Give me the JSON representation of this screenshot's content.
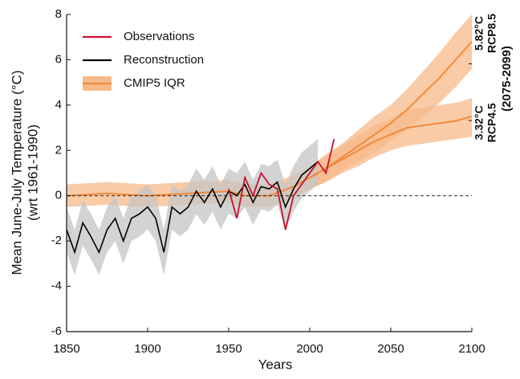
{
  "chart_data": {
    "type": "line",
    "xlabel": "Years",
    "ylabel": [
      "Mean June-July Temperature (°C)",
      "(wrt 1961-1990)"
    ],
    "xlim": [
      1850,
      2100
    ],
    "xticks": [
      1850,
      1900,
      1950,
      2000,
      2050,
      2100
    ],
    "ylim": [
      -6,
      8
    ],
    "yticks": [
      -6,
      -4,
      -2,
      0,
      2,
      4,
      6,
      8
    ],
    "hline": 0,
    "legend": "upper left",
    "series": [
      {
        "name": "Observations",
        "color": "#c8102e",
        "x": [
          1950,
          1955,
          1960,
          1965,
          1970,
          1975,
          1980,
          1985,
          1990,
          1995,
          2000,
          2005,
          2010,
          2015
        ],
        "values": [
          0.3,
          -1.0,
          0.8,
          0.0,
          1.0,
          0.5,
          0.3,
          -1.5,
          0.0,
          0.5,
          1.0,
          1.5,
          1.0,
          2.5
        ]
      },
      {
        "name": "Reconstruction",
        "color": "#000000",
        "band_color": "#c4c4c4",
        "x": [
          1850,
          1855,
          1860,
          1865,
          1870,
          1875,
          1880,
          1885,
          1890,
          1895,
          1900,
          1905,
          1910,
          1915,
          1920,
          1925,
          1930,
          1935,
          1940,
          1945,
          1950,
          1955,
          1960,
          1965,
          1970,
          1975,
          1980,
          1985,
          1990,
          1995,
          2000,
          2005
        ],
        "values": [
          -1.5,
          -2.5,
          -1.2,
          -1.8,
          -2.5,
          -1.5,
          -1.0,
          -2.0,
          -1.0,
          -0.8,
          -0.5,
          -1.0,
          -2.5,
          -0.5,
          -0.8,
          -0.5,
          0.2,
          -0.3,
          0.3,
          -0.5,
          0.2,
          0.0,
          0.5,
          -0.3,
          0.4,
          0.3,
          0.6,
          -0.5,
          0.3,
          0.9,
          1.2,
          1.5
        ],
        "lower": [
          -2.5,
          -3.5,
          -2.2,
          -2.8,
          -3.5,
          -2.5,
          -2.0,
          -3.0,
          -2.0,
          -1.8,
          -1.5,
          -2.0,
          -3.5,
          -1.5,
          -1.8,
          -1.5,
          -0.8,
          -1.3,
          -0.7,
          -1.5,
          -0.8,
          -1.0,
          -0.5,
          -1.3,
          -0.6,
          -0.7,
          -0.4,
          -1.5,
          -0.7,
          -0.1,
          0.2,
          0.5
        ],
        "upper": [
          -0.5,
          -1.5,
          -0.2,
          -0.8,
          -1.5,
          -0.5,
          0.0,
          -1.0,
          0.0,
          0.2,
          0.5,
          0.0,
          -1.5,
          0.5,
          0.2,
          0.5,
          1.2,
          0.7,
          1.3,
          0.5,
          1.2,
          1.0,
          1.5,
          0.7,
          1.4,
          1.3,
          1.6,
          0.5,
          1.3,
          1.9,
          2.2,
          2.5
        ]
      },
      {
        "name": "CMIP5 IQR",
        "color": "#f08a3a",
        "band_color": "#f7b98a",
        "x": [
          1850,
          1875,
          1900,
          1925,
          1950,
          1960,
          1975,
          1990,
          2000,
          2010,
          2020,
          2030,
          2040,
          2050,
          2060,
          2070,
          2080,
          2090,
          2100
        ],
        "values": [
          0,
          0.1,
          0,
          0.1,
          0.2,
          0,
          0,
          0.4,
          0.8,
          1.2,
          1.7,
          2.2,
          2.7,
          3.2,
          3.8,
          4.5,
          5.2,
          6.0,
          6.8
        ],
        "lower": [
          -0.5,
          -0.4,
          -0.5,
          -0.4,
          -0.3,
          -0.5,
          -0.5,
          -0.1,
          0.3,
          0.6,
          1.1,
          1.5,
          1.9,
          2.4,
          2.9,
          3.5,
          4.1,
          4.8,
          5.6
        ],
        "upper": [
          0.5,
          0.6,
          0.5,
          0.6,
          0.7,
          0.5,
          0.5,
          0.9,
          1.3,
          1.8,
          2.3,
          2.9,
          3.5,
          4.0,
          4.7,
          5.5,
          6.3,
          7.2,
          8.0
        ]
      }
    ],
    "scenarios": [
      {
        "name": "RCP8.5",
        "value": 5.82,
        "value_label": "5.82°C"
      },
      {
        "name": "RCP4.5",
        "value": 3.32,
        "value_label": "3.32°C",
        "color": "#f08a3a",
        "band_color": "#f7b98a",
        "x": [
          2000,
          2010,
          2020,
          2030,
          2040,
          2050,
          2060,
          2070,
          2080,
          2090,
          2100
        ],
        "values": [
          0.8,
          1.2,
          1.6,
          2.0,
          2.4,
          2.7,
          3.0,
          3.1,
          3.2,
          3.3,
          3.5
        ],
        "lower": [
          0.3,
          0.6,
          1.0,
          1.3,
          1.7,
          2.0,
          2.2,
          2.3,
          2.4,
          2.5,
          2.6
        ],
        "upper": [
          1.3,
          1.8,
          2.2,
          2.7,
          3.1,
          3.4,
          3.8,
          3.9,
          4.0,
          4.1,
          4.3
        ]
      }
    ],
    "period": "(2075-2099)"
  }
}
